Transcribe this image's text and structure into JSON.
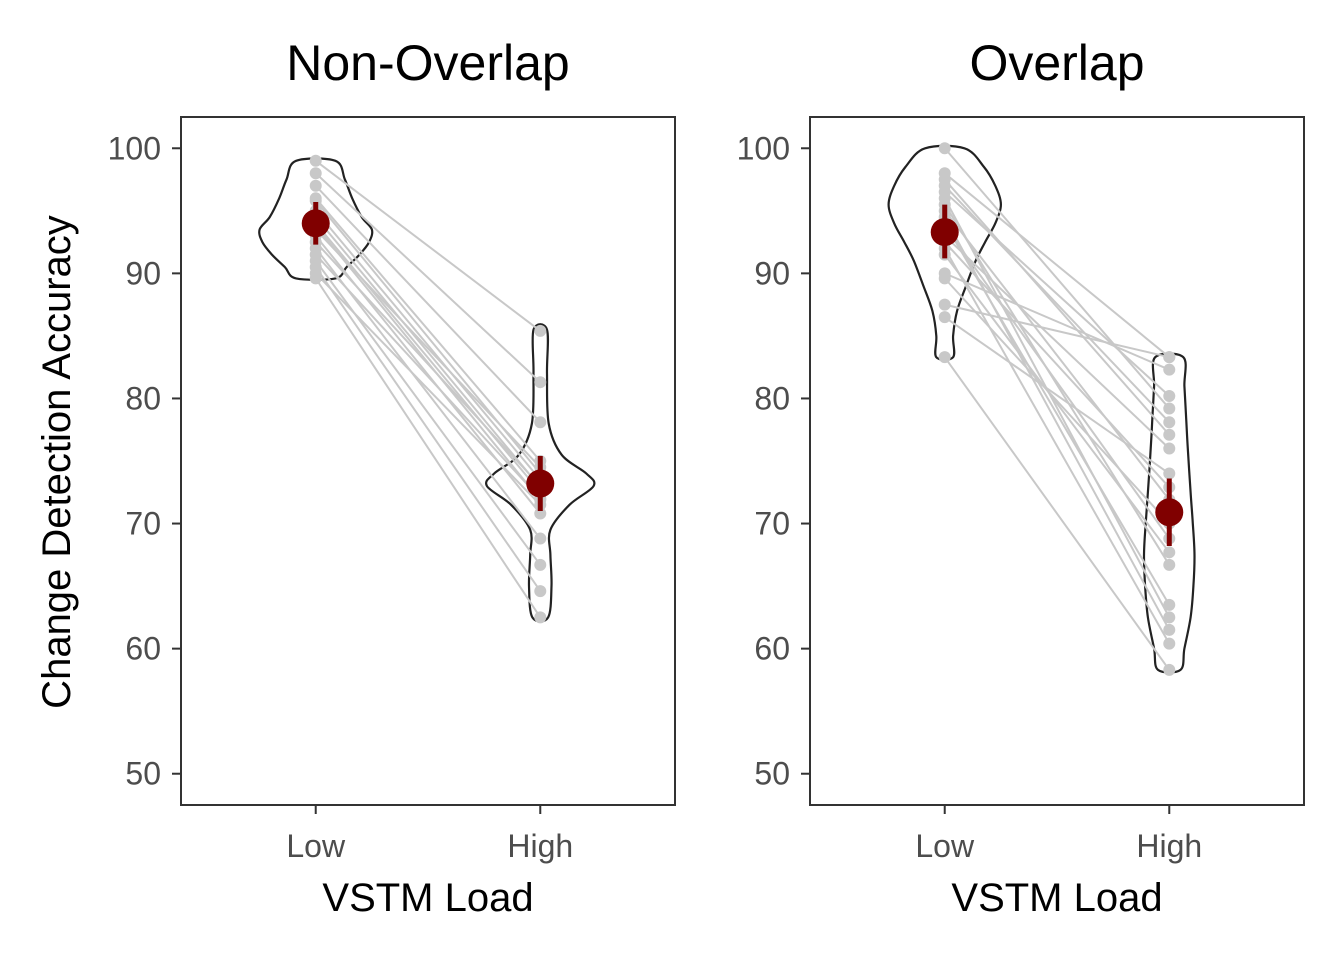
{
  "figure": {
    "ylabel": "Change Detection Accuracy",
    "xlabel": "VSTM Load"
  },
  "colors": {
    "subject": "#c8c8c8",
    "mean": "#800000",
    "violin": "#222222",
    "frame": "#333333"
  },
  "chart_data": [
    {
      "type": "violin",
      "title": "Non-Overlap",
      "xlabel": "VSTM Load",
      "ylabel": "Change Detection Accuracy",
      "categories": [
        "Low",
        "High"
      ],
      "ylim": [
        47.5,
        102.5
      ],
      "yticks": [
        50,
        60,
        70,
        80,
        90,
        100
      ],
      "means": [
        94.0,
        73.2
      ],
      "errors": [
        [
          92.3,
          95.7
        ],
        [
          71.0,
          75.4
        ]
      ],
      "subjects": [
        [
          99.0,
          85.4
        ],
        [
          98.0,
          81.3
        ],
        [
          97.0,
          78.1
        ],
        [
          96.0,
          75.0
        ],
        [
          95.8,
          74.0
        ],
        [
          95.0,
          73.5
        ],
        [
          94.5,
          72.9
        ],
        [
          94.0,
          72.5
        ],
        [
          93.8,
          71.9
        ],
        [
          93.5,
          74.5
        ],
        [
          93.0,
          70.8
        ],
        [
          92.5,
          73.0
        ],
        [
          92.0,
          68.8
        ],
        [
          91.5,
          72.0
        ],
        [
          91.0,
          66.7
        ],
        [
          90.5,
          64.6
        ],
        [
          90.0,
          71.5
        ],
        [
          89.6,
          62.5
        ]
      ],
      "violins": [
        [
          [
            99.0,
            0.35
          ],
          [
            97.5,
            0.52
          ],
          [
            96.0,
            0.65
          ],
          [
            94.5,
            0.82
          ],
          [
            93.5,
            1.0
          ],
          [
            92.5,
            0.95
          ],
          [
            91.5,
            0.78
          ],
          [
            90.5,
            0.55
          ],
          [
            89.6,
            0.35
          ]
        ],
        [
          [
            85.5,
            0.12
          ],
          [
            82.0,
            0.12
          ],
          [
            78.0,
            0.15
          ],
          [
            75.5,
            0.38
          ],
          [
            74.0,
            0.82
          ],
          [
            73.0,
            0.95
          ],
          [
            71.5,
            0.52
          ],
          [
            69.5,
            0.18
          ],
          [
            67.5,
            0.18
          ],
          [
            65.0,
            0.2
          ],
          [
            62.5,
            0.14
          ]
        ]
      ],
      "violin_max_halfwidth": 0.25
    },
    {
      "type": "violin",
      "title": "Overlap",
      "xlabel": "VSTM Load",
      "ylabel": "Change Detection Accuracy",
      "categories": [
        "Low",
        "High"
      ],
      "ylim": [
        47.5,
        102.5
      ],
      "yticks": [
        50,
        60,
        70,
        80,
        90,
        100
      ],
      "means": [
        93.3,
        70.9
      ],
      "errors": [
        [
          91.2,
          95.5
        ],
        [
          68.2,
          73.6
        ]
      ],
      "subjects": [
        [
          100.0,
          79.2
        ],
        [
          98.0,
          83.3
        ],
        [
          97.5,
          77.1
        ],
        [
          97.0,
          78.1
        ],
        [
          96.5,
          80.2
        ],
        [
          96.0,
          62.5
        ],
        [
          95.5,
          66.7
        ],
        [
          95.0,
          71.9
        ],
        [
          94.5,
          61.5
        ],
        [
          94.0,
          63.5
        ],
        [
          93.8,
          68.8
        ],
        [
          93.0,
          76.0
        ],
        [
          92.5,
          72.9
        ],
        [
          92.0,
          60.4
        ],
        [
          91.5,
          67.7
        ],
        [
          90.0,
          82.3
        ],
        [
          89.6,
          70.0
        ],
        [
          87.5,
          83.3
        ],
        [
          86.5,
          74.0
        ],
        [
          83.3,
          58.3
        ]
      ],
      "violins": [
        [
          [
            100.0,
            0.35
          ],
          [
            98.5,
            0.7
          ],
          [
            97.0,
            0.9
          ],
          [
            95.5,
            1.0
          ],
          [
            94.0,
            0.9
          ],
          [
            92.5,
            0.72
          ],
          [
            91.0,
            0.55
          ],
          [
            89.0,
            0.38
          ],
          [
            87.0,
            0.22
          ],
          [
            85.0,
            0.15
          ],
          [
            83.3,
            0.15
          ]
        ],
        [
          [
            83.3,
            0.25
          ],
          [
            81.0,
            0.27
          ],
          [
            78.5,
            0.3
          ],
          [
            76.0,
            0.33
          ],
          [
            72.5,
            0.38
          ],
          [
            70.0,
            0.42
          ],
          [
            67.5,
            0.45
          ],
          [
            65.0,
            0.43
          ],
          [
            62.5,
            0.38
          ],
          [
            60.0,
            0.27
          ],
          [
            58.3,
            0.2
          ]
        ]
      ],
      "violin_max_halfwidth": 0.25
    }
  ]
}
